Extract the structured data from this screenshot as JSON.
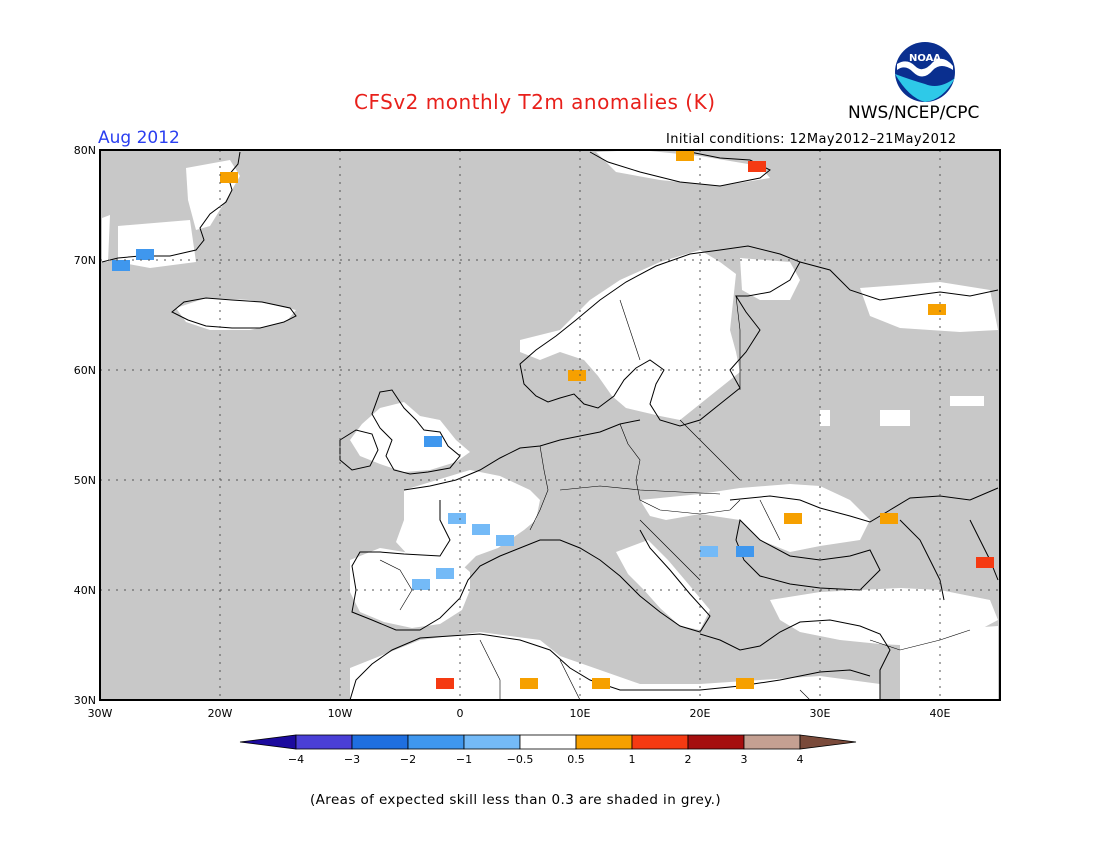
{
  "header": {
    "title": "CFSv2 monthly T2m anomalies (K)",
    "agency": "NWS/NCEP/CPC",
    "logo_text": "NOAA",
    "month_label": "Aug 2012",
    "initial_conditions": "Initial conditions: 12May2012–21May2012"
  },
  "map": {
    "lon_range": [
      -30,
      45
    ],
    "lat_range": [
      30,
      80
    ],
    "lon_ticks": [
      {
        "value": -30,
        "label": "30W"
      },
      {
        "value": -20,
        "label": "20W"
      },
      {
        "value": -10,
        "label": "10W"
      },
      {
        "value": 0,
        "label": "0"
      },
      {
        "value": 10,
        "label": "10E"
      },
      {
        "value": 20,
        "label": "20E"
      },
      {
        "value": 30,
        "label": "30E"
      },
      {
        "value": 40,
        "label": "40E"
      }
    ],
    "lat_ticks": [
      {
        "value": 80,
        "label": "80N"
      },
      {
        "value": 70,
        "label": "70N"
      },
      {
        "value": 60,
        "label": "60N"
      },
      {
        "value": 50,
        "label": "50N"
      },
      {
        "value": 40,
        "label": "40N"
      },
      {
        "value": 30,
        "label": "30N"
      }
    ],
    "grid": "dotted",
    "skill_mask_color": "#c8c8c8",
    "anomaly_cells": [
      {
        "lon": -29,
        "lat": 69,
        "value": -1.5
      },
      {
        "lon": -27,
        "lat": 70,
        "value": -1.5
      },
      {
        "lon": -20,
        "lat": 77,
        "value": 0.7
      },
      {
        "lon": -3,
        "lat": 53,
        "value": -1.5
      },
      {
        "lon": -1,
        "lat": 46,
        "value": -0.8
      },
      {
        "lon": 1,
        "lat": 45,
        "value": -0.8
      },
      {
        "lon": 3,
        "lat": 44,
        "value": -0.8
      },
      {
        "lon": -4,
        "lat": 40,
        "value": -0.8
      },
      {
        "lon": -2,
        "lat": 41,
        "value": -0.8
      },
      {
        "lon": 9,
        "lat": 59,
        "value": 0.7
      },
      {
        "lon": 18,
        "lat": 79,
        "value": 0.7
      },
      {
        "lon": 24,
        "lat": 78,
        "value": 1.5
      },
      {
        "lon": 20,
        "lat": 43,
        "value": -0.8
      },
      {
        "lon": 23,
        "lat": 43,
        "value": -1.5
      },
      {
        "lon": 27,
        "lat": 46,
        "value": 0.7
      },
      {
        "lon": 35,
        "lat": 46,
        "value": 0.7
      },
      {
        "lon": 39,
        "lat": 65,
        "value": 0.7
      },
      {
        "lon": 43,
        "lat": 42,
        "value": 1.5
      },
      {
        "lon": -2,
        "lat": 31,
        "value": 1.5
      },
      {
        "lon": 5,
        "lat": 31,
        "value": 0.7
      },
      {
        "lon": 11,
        "lat": 31,
        "value": 0.7
      },
      {
        "lon": 23,
        "lat": 31,
        "value": 0.7
      }
    ]
  },
  "colorbar": {
    "colors": [
      "#1c0a9e",
      "#4a3fd6",
      "#1f6fe0",
      "#3f97ee",
      "#74baf7",
      "#ffffff",
      "#f6a000",
      "#f53a12",
      "#a50f0f",
      "#c4a092",
      "#7a4a3a"
    ],
    "labels": [
      "−4",
      "−3",
      "−2",
      "−1",
      "−0.5",
      "0.5",
      "1",
      "2",
      "3",
      "4"
    ]
  },
  "footnote": "(Areas of expected skill less than 0.3 are shaded in grey.)"
}
